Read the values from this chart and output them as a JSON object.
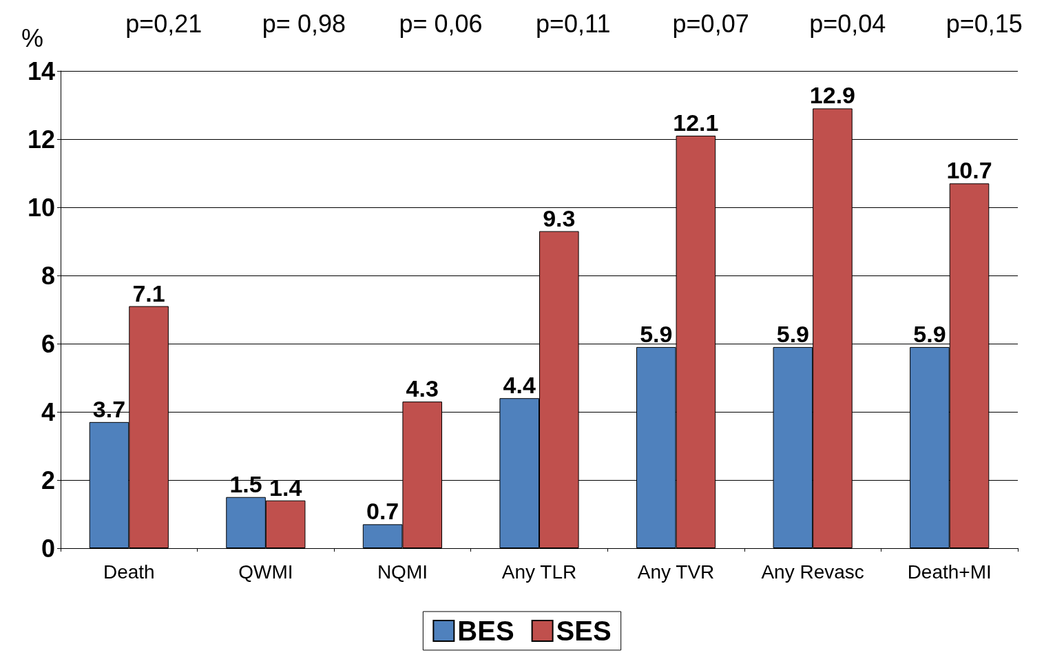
{
  "chart_data": {
    "type": "bar",
    "ylabel": "%",
    "categories": [
      "Death",
      "QWMI",
      "NQMI",
      "Any TLR",
      "Any TVR",
      "Any Revasc",
      "Death+MI"
    ],
    "series": [
      {
        "name": "BES",
        "color": "#4f81bd",
        "values": [
          3.7,
          1.5,
          0.7,
          4.4,
          5.9,
          5.9,
          5.9
        ]
      },
      {
        "name": "SES",
        "color": "#c0504d",
        "values": [
          7.1,
          1.4,
          4.3,
          9.3,
          12.1,
          12.9,
          10.7
        ]
      }
    ],
    "ylim": [
      0,
      14
    ],
    "yticks": [
      0,
      2,
      4,
      6,
      8,
      10,
      12,
      14
    ],
    "grid": "y",
    "legend": "bottom",
    "data_labels": true,
    "annotations": [
      "p=0,21",
      "p= 0,98",
      "p= 0,06",
      "p=0,11",
      "p=0,07",
      "p=0,04",
      "p=0,15"
    ]
  }
}
